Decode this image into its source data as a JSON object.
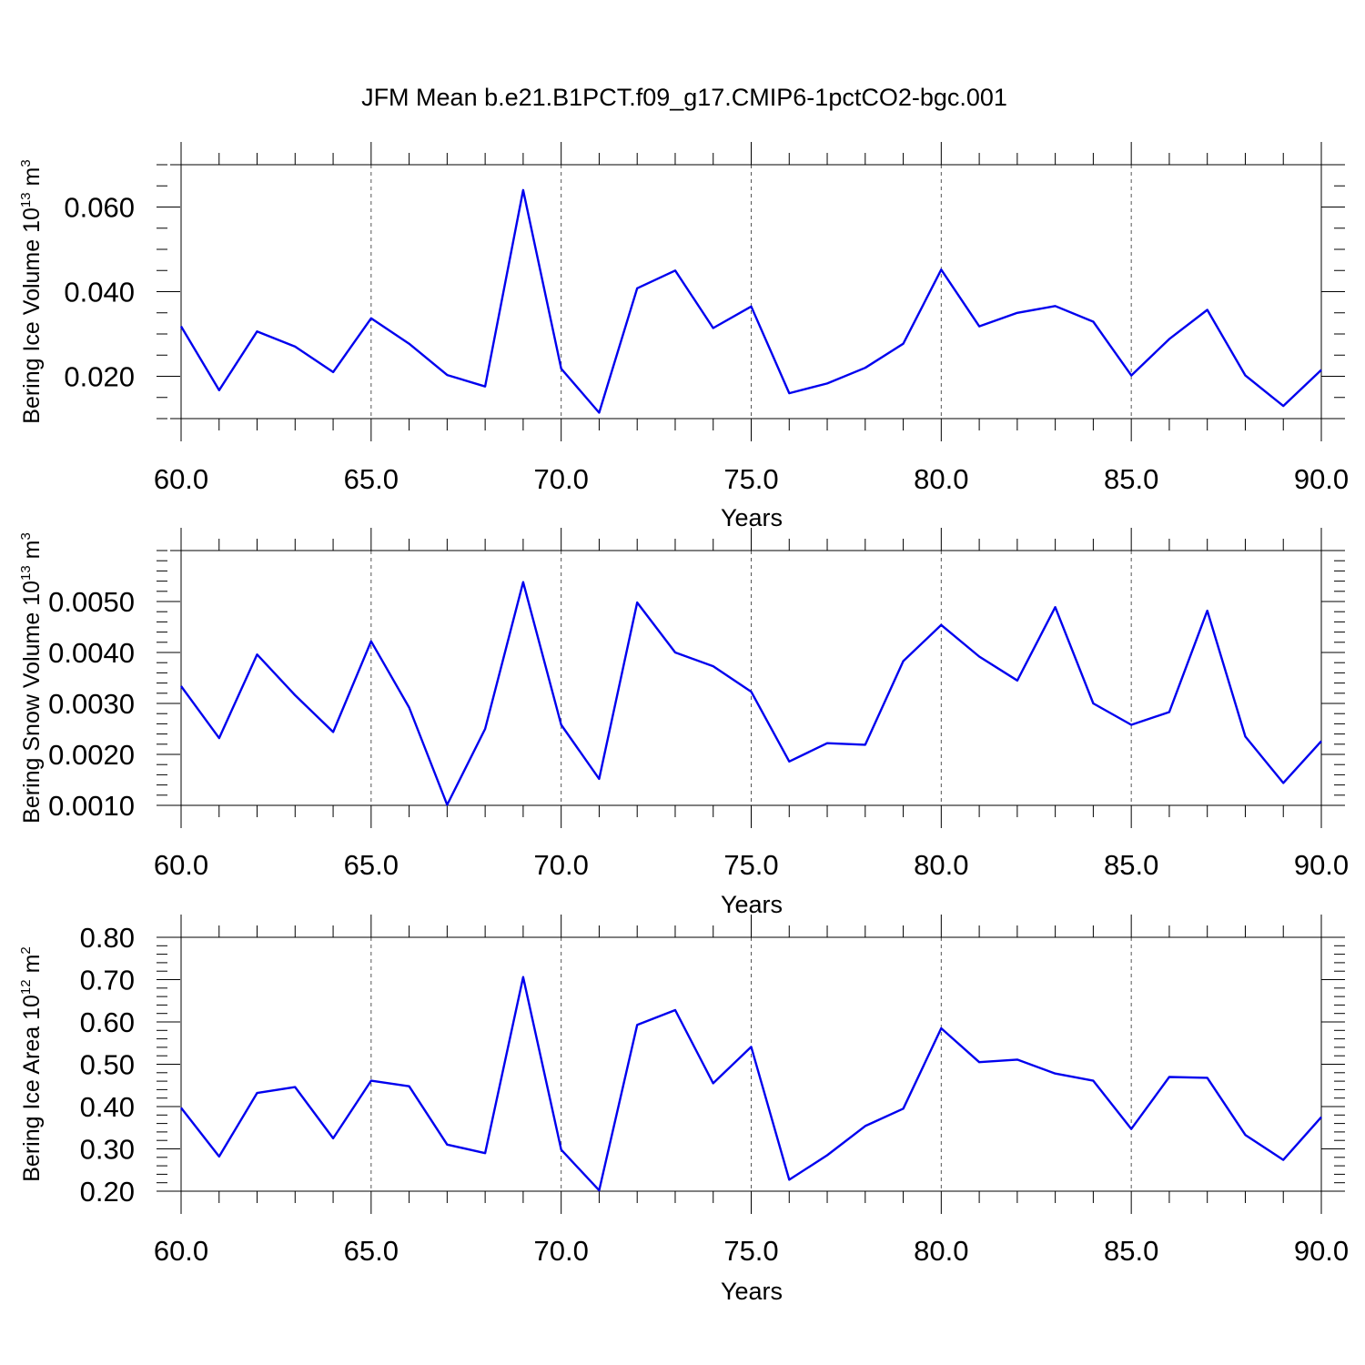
{
  "title": "JFM Mean b.e21.B1PCT.f09_g17.CMIP6-1pctCO2-bgc.001",
  "colors": {
    "line": "#0000ee",
    "grid": "#555555",
    "axis": "#000000"
  },
  "chart_data": [
    {
      "type": "line",
      "ylabel": "Bering Ice Volume 10",
      "ylabel_exp": "13",
      "ylabel_unit": " m",
      "ylabel_unit_exp": "3",
      "xlabel": "Years",
      "xlim": [
        60,
        90
      ],
      "ylim": [
        0.01,
        0.07
      ],
      "xticks": [
        "60.0",
        "65.0",
        "70.0",
        "75.0",
        "80.0",
        "85.0",
        "90.0"
      ],
      "yticks": [
        "0.020",
        "0.040",
        "0.060"
      ],
      "ytick_values": [
        0.02,
        0.04,
        0.06
      ],
      "grid": "vertical dashed at major x ticks",
      "x": [
        60,
        61,
        62,
        63,
        64,
        65,
        66,
        67,
        68,
        69,
        70,
        71,
        72,
        73,
        74,
        75,
        76,
        77,
        78,
        79,
        80,
        81,
        82,
        83,
        84,
        85,
        86,
        87,
        88,
        89,
        90
      ],
      "values": [
        0.0318,
        0.0167,
        0.0306,
        0.027,
        0.021,
        0.0337,
        0.0277,
        0.0203,
        0.0176,
        0.064,
        0.0218,
        0.0114,
        0.0408,
        0.045,
        0.0314,
        0.0365,
        0.016,
        0.0183,
        0.022,
        0.0277,
        0.0452,
        0.0318,
        0.035,
        0.0366,
        0.0329,
        0.0202,
        0.0288,
        0.0357,
        0.0202,
        0.013,
        0.0215
      ]
    },
    {
      "type": "line",
      "ylabel": "Bering Snow Volume 10",
      "ylabel_exp": "13",
      "ylabel_unit": " m",
      "ylabel_unit_exp": "3",
      "xlabel": "Years",
      "xlim": [
        60,
        90
      ],
      "ylim": [
        0.001,
        0.006
      ],
      "xticks": [
        "60.0",
        "65.0",
        "70.0",
        "75.0",
        "80.0",
        "85.0",
        "90.0"
      ],
      "yticks": [
        "0.0010",
        "0.0020",
        "0.0030",
        "0.0040",
        "0.0050"
      ],
      "ytick_values": [
        0.001,
        0.002,
        0.003,
        0.004,
        0.005
      ],
      "grid": "vertical dashed at major x ticks",
      "x": [
        60,
        61,
        62,
        63,
        64,
        65,
        66,
        67,
        68,
        69,
        70,
        71,
        72,
        73,
        74,
        75,
        76,
        77,
        78,
        79,
        80,
        81,
        82,
        83,
        84,
        85,
        86,
        87,
        88,
        89,
        90
      ],
      "values": [
        0.00334,
        0.00232,
        0.00396,
        0.00316,
        0.00244,
        0.00422,
        0.00292,
        0.00101,
        0.0025,
        0.00538,
        0.00258,
        0.00152,
        0.00498,
        0.004,
        0.00373,
        0.00323,
        0.00186,
        0.00222,
        0.00219,
        0.00383,
        0.00454,
        0.00392,
        0.00345,
        0.00489,
        0.003,
        0.00258,
        0.00283,
        0.00482,
        0.00235,
        0.00144,
        0.00226
      ]
    },
    {
      "type": "line",
      "ylabel": "Bering Ice Area 10",
      "ylabel_exp": "12",
      "ylabel_unit": " m",
      "ylabel_unit_exp": "2",
      "xlabel": "Years",
      "xlim": [
        60,
        90
      ],
      "ylim": [
        0.2,
        0.8
      ],
      "xticks": [
        "60.0",
        "65.0",
        "70.0",
        "75.0",
        "80.0",
        "85.0",
        "90.0"
      ],
      "yticks": [
        "0.20",
        "0.30",
        "0.40",
        "0.50",
        "0.60",
        "0.70",
        "0.80"
      ],
      "ytick_values": [
        0.2,
        0.3,
        0.4,
        0.5,
        0.6,
        0.7,
        0.8
      ],
      "grid": "vertical dashed at major x ticks",
      "x": [
        60,
        61,
        62,
        63,
        64,
        65,
        66,
        67,
        68,
        69,
        70,
        71,
        72,
        73,
        74,
        75,
        76,
        77,
        78,
        79,
        80,
        81,
        82,
        83,
        84,
        85,
        86,
        87,
        88,
        89,
        90
      ],
      "values": [
        0.397,
        0.282,
        0.432,
        0.446,
        0.325,
        0.461,
        0.448,
        0.31,
        0.29,
        0.706,
        0.298,
        0.202,
        0.593,
        0.628,
        0.455,
        0.541,
        0.227,
        0.285,
        0.354,
        0.395,
        0.585,
        0.505,
        0.511,
        0.478,
        0.461,
        0.347,
        0.47,
        0.468,
        0.333,
        0.274,
        0.375
      ]
    }
  ]
}
